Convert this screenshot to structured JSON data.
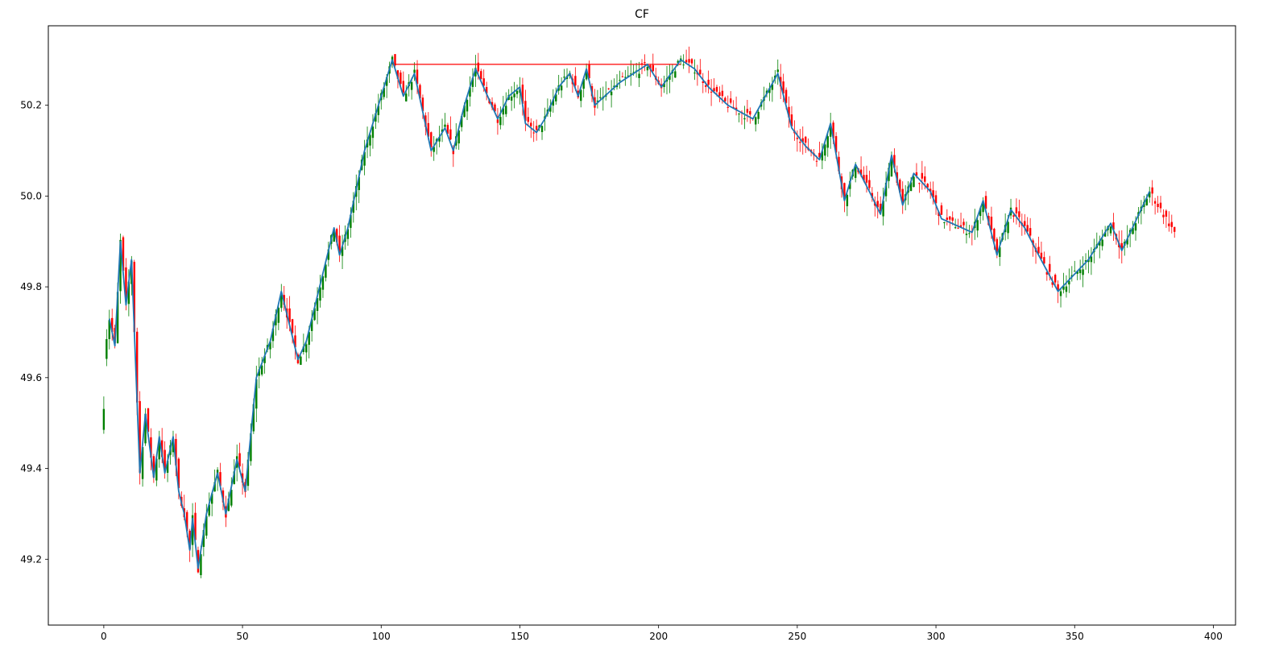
{
  "chart_data": {
    "type": "candlestick",
    "title": "CF",
    "xlabel": "",
    "ylabel": "",
    "xlim": [
      -20,
      408
    ],
    "ylim": [
      49.055,
      50.375
    ],
    "x_ticks": [
      0,
      50,
      100,
      150,
      200,
      250,
      300,
      350,
      400
    ],
    "y_ticks": [
      49.2,
      49.4,
      49.6,
      49.8,
      50.0,
      50.2
    ],
    "x_tick_labels": [
      "0",
      "50",
      "100",
      "150",
      "200",
      "250",
      "300",
      "350",
      "400"
    ],
    "y_tick_labels": [
      "49.2",
      "49.4",
      "49.6",
      "49.8",
      "50.0",
      "50.2"
    ],
    "grid": false,
    "colors": {
      "up": "#008000",
      "down": "#ff0000",
      "zigzag": "#1f77b4",
      "resistance": "#ff0000"
    },
    "zigzag": {
      "x": [
        2,
        4,
        6,
        8,
        10,
        13,
        15,
        18,
        20,
        22,
        25,
        27,
        29,
        31,
        32,
        34,
        37,
        41,
        44,
        48,
        51,
        55,
        60,
        64,
        70,
        73,
        83,
        85,
        88,
        94,
        104,
        108,
        112,
        118,
        123,
        126,
        130,
        134,
        142,
        146,
        150,
        152,
        156,
        159,
        164,
        168,
        171,
        174,
        177,
        186,
        196,
        201,
        208,
        213,
        218,
        225,
        234,
        243,
        248,
        253,
        258,
        262,
        267,
        271,
        276,
        280,
        284,
        288,
        292,
        298,
        302,
        313,
        317,
        322,
        327,
        332,
        337,
        344,
        355,
        363,
        367,
        377
      ],
      "y": [
        49.73,
        49.67,
        49.9,
        49.76,
        49.86,
        49.39,
        49.52,
        49.38,
        49.47,
        49.39,
        49.47,
        49.35,
        49.3,
        49.22,
        49.29,
        49.18,
        49.3,
        49.39,
        49.3,
        49.42,
        49.35,
        49.6,
        49.68,
        49.79,
        49.64,
        49.68,
        49.93,
        49.87,
        49.93,
        50.1,
        50.3,
        50.22,
        50.27,
        50.1,
        50.15,
        50.1,
        50.2,
        50.28,
        50.17,
        50.22,
        50.24,
        50.16,
        50.14,
        50.17,
        50.24,
        50.27,
        50.22,
        50.28,
        50.2,
        50.25,
        50.29,
        50.24,
        50.3,
        50.28,
        50.24,
        50.2,
        50.17,
        50.27,
        50.15,
        50.11,
        50.08,
        50.16,
        49.99,
        50.07,
        50.01,
        49.96,
        50.09,
        49.98,
        50.05,
        50.01,
        49.95,
        49.92,
        49.99,
        49.87,
        49.97,
        49.93,
        49.87,
        49.79,
        49.86,
        49.94,
        49.88,
        50.01
      ]
    },
    "resistance_line": {
      "x_start": 104,
      "x_end": 208,
      "y": 50.29
    }
  }
}
